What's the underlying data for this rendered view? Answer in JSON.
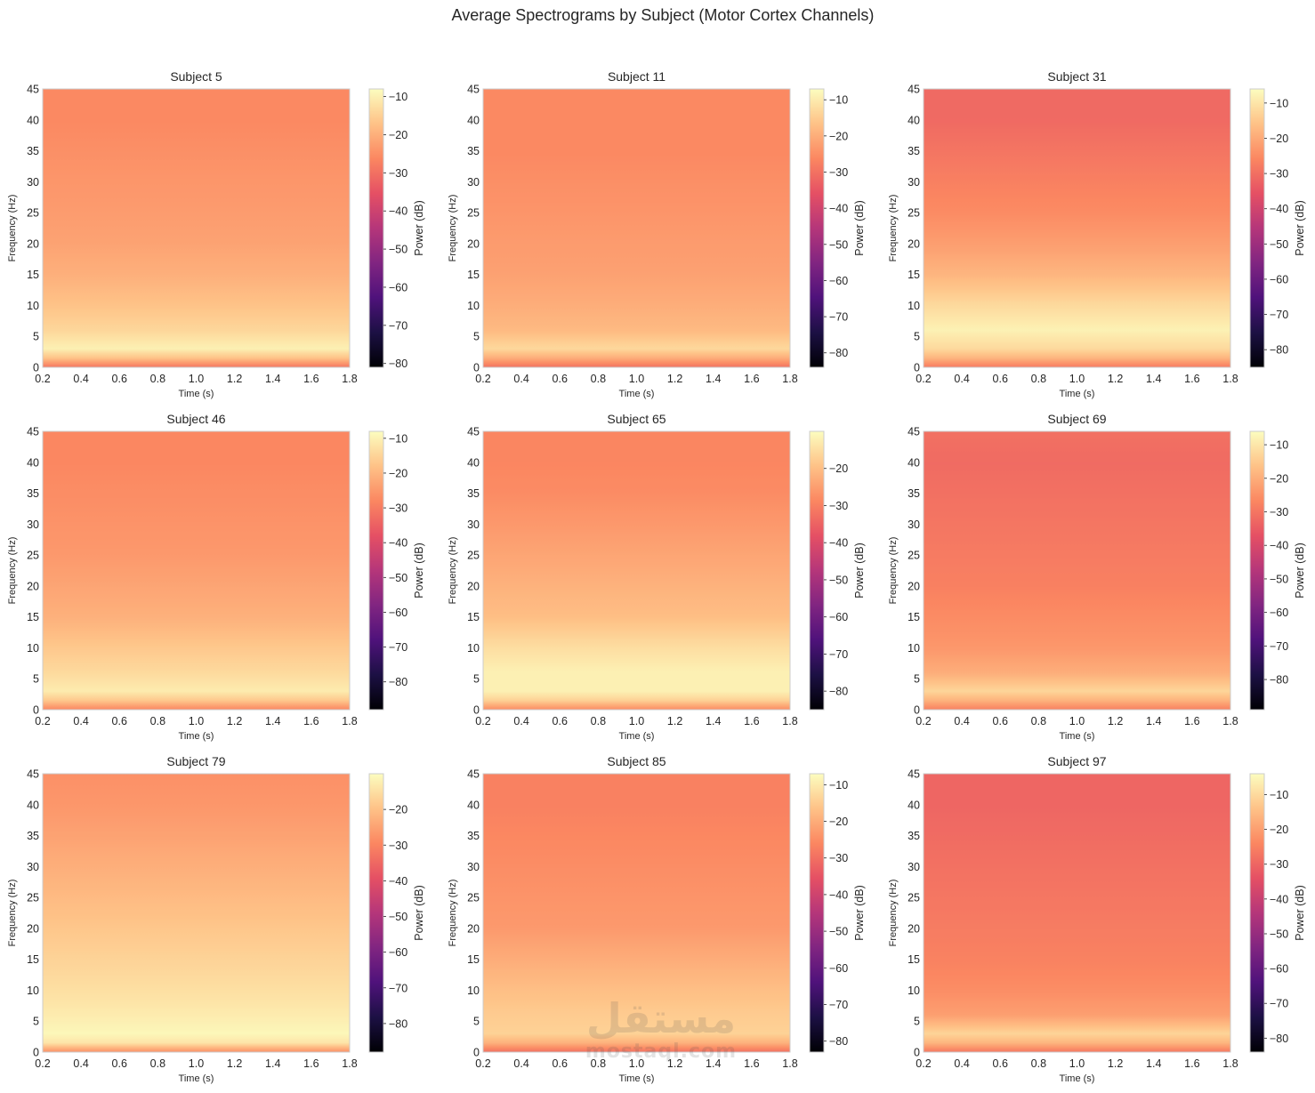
{
  "figure": {
    "title": "Average Spectrograms by Subject (Motor Cortex Channels)"
  },
  "colormap": {
    "name": "magma",
    "stops": [
      "#000004",
      "#1c1044",
      "#4f127b",
      "#812581",
      "#b5367a",
      "#e55064",
      "#fb8761",
      "#fec287",
      "#fcfdbf"
    ]
  },
  "watermark": {
    "arabic": "مستقل",
    "latin": "mostaql.com"
  },
  "chart_data": [
    {
      "type": "heatmap",
      "title": "Subject 5",
      "xlabel": "Time (s)",
      "ylabel": "Frequency (Hz)",
      "colorbar_label": "Power (dB)",
      "xlim": [
        0.2,
        1.8
      ],
      "ylim": [
        0,
        45
      ],
      "xticks": [
        0.2,
        0.4,
        0.6,
        0.8,
        1.0,
        1.2,
        1.4,
        1.6,
        1.8
      ],
      "xtick_labels": [
        "0.2",
        "0.4",
        "0.6",
        "0.8",
        "1.0",
        "1.2",
        "1.4",
        "1.6",
        "1.8"
      ],
      "yticks": [
        0,
        5,
        10,
        15,
        20,
        25,
        30,
        35,
        40,
        45
      ],
      "ytick_labels": [
        "0",
        "5",
        "10",
        "15",
        "20",
        "25",
        "30",
        "35",
        "40",
        "45"
      ],
      "clim": [
        -81,
        -8
      ],
      "colorbar_ticks": [
        -80,
        -70,
        -60,
        -50,
        -40,
        -30,
        -20,
        -10
      ],
      "colorbar_tick_labels": [
        "−80",
        "−70",
        "−60",
        "−50",
        "−40",
        "−30",
        "−20",
        "−10"
      ],
      "freq_profile": {
        "freqs": [
          0,
          1.5,
          3,
          6,
          10,
          15,
          20,
          25,
          30,
          35,
          40,
          45
        ],
        "power": [
          -29,
          -17,
          -10,
          -14,
          -17,
          -20,
          -22,
          -23,
          -24,
          -25,
          -26,
          -26
        ]
      }
    },
    {
      "type": "heatmap",
      "title": "Subject 11",
      "xlabel": "Time (s)",
      "ylabel": "Frequency (Hz)",
      "colorbar_label": "Power (dB)",
      "xlim": [
        0.2,
        1.8
      ],
      "ylim": [
        0,
        45
      ],
      "xticks": [
        0.2,
        0.4,
        0.6,
        0.8,
        1.0,
        1.2,
        1.4,
        1.6,
        1.8
      ],
      "xtick_labels": [
        "0.2",
        "0.4",
        "0.6",
        "0.8",
        "1.0",
        "1.2",
        "1.4",
        "1.6",
        "1.8"
      ],
      "yticks": [
        0,
        5,
        10,
        15,
        20,
        25,
        30,
        35,
        40,
        45
      ],
      "ytick_labels": [
        "0",
        "5",
        "10",
        "15",
        "20",
        "25",
        "30",
        "35",
        "40",
        "45"
      ],
      "clim": [
        -84,
        -7
      ],
      "colorbar_ticks": [
        -80,
        -70,
        -60,
        -50,
        -40,
        -30,
        -20,
        -10
      ],
      "colorbar_tick_labels": [
        "−80",
        "−70",
        "−60",
        "−50",
        "−40",
        "−30",
        "−20",
        "−10"
      ],
      "freq_profile": {
        "freqs": [
          0,
          1.5,
          3,
          6,
          10,
          15,
          20,
          25,
          30,
          35,
          40,
          45
        ],
        "power": [
          -30,
          -20,
          -13,
          -18,
          -20,
          -22,
          -23,
          -24,
          -25,
          -26,
          -26,
          -26
        ]
      }
    },
    {
      "type": "heatmap",
      "title": "Subject 31",
      "xlabel": "Time (s)",
      "ylabel": "Frequency (Hz)",
      "colorbar_label": "Power (dB)",
      "xlim": [
        0.2,
        1.8
      ],
      "ylim": [
        0,
        45
      ],
      "xticks": [
        0.2,
        0.4,
        0.6,
        0.8,
        1.0,
        1.2,
        1.4,
        1.6,
        1.8
      ],
      "xtick_labels": [
        "0.2",
        "0.4",
        "0.6",
        "0.8",
        "1.0",
        "1.2",
        "1.4",
        "1.6",
        "1.8"
      ],
      "yticks": [
        0,
        5,
        10,
        15,
        20,
        25,
        30,
        35,
        40,
        45
      ],
      "ytick_labels": [
        "0",
        "5",
        "10",
        "15",
        "20",
        "25",
        "30",
        "35",
        "40",
        "45"
      ],
      "clim": [
        -85,
        -6
      ],
      "colorbar_ticks": [
        -80,
        -70,
        -60,
        -50,
        -40,
        -30,
        -20,
        -10
      ],
      "colorbar_tick_labels": [
        "−80",
        "−70",
        "−60",
        "−50",
        "−40",
        "−30",
        "−20",
        "−10"
      ],
      "freq_profile": {
        "freqs": [
          0,
          1.5,
          3,
          6,
          10,
          15,
          20,
          25,
          30,
          35,
          40,
          45
        ],
        "power": [
          -28,
          -18,
          -12,
          -8,
          -12,
          -18,
          -22,
          -25,
          -27,
          -29,
          -31,
          -31
        ]
      }
    },
    {
      "type": "heatmap",
      "title": "Subject 46",
      "xlabel": "Time (s)",
      "ylabel": "Frequency (Hz)",
      "colorbar_label": "Power (dB)",
      "xlim": [
        0.2,
        1.8
      ],
      "ylim": [
        0,
        45
      ],
      "xticks": [
        0.2,
        0.4,
        0.6,
        0.8,
        1.0,
        1.2,
        1.4,
        1.6,
        1.8
      ],
      "xtick_labels": [
        "0.2",
        "0.4",
        "0.6",
        "0.8",
        "1.0",
        "1.2",
        "1.4",
        "1.6",
        "1.8"
      ],
      "yticks": [
        0,
        5,
        10,
        15,
        20,
        25,
        30,
        35,
        40,
        45
      ],
      "ytick_labels": [
        "0",
        "5",
        "10",
        "15",
        "20",
        "25",
        "30",
        "35",
        "40",
        "45"
      ],
      "clim": [
        -88,
        -8
      ],
      "colorbar_ticks": [
        -80,
        -70,
        -60,
        -50,
        -40,
        -30,
        -20,
        -10
      ],
      "colorbar_tick_labels": [
        "−80",
        "−70",
        "−60",
        "−50",
        "−40",
        "−30",
        "−20",
        "−10"
      ],
      "freq_profile": {
        "freqs": [
          0,
          1.5,
          3,
          6,
          10,
          15,
          20,
          25,
          30,
          35,
          40,
          45
        ],
        "power": [
          -28,
          -17,
          -11,
          -14,
          -17,
          -21,
          -23,
          -25,
          -26,
          -27,
          -28,
          -28
        ]
      }
    },
    {
      "type": "heatmap",
      "title": "Subject 65",
      "xlabel": "Time (s)",
      "ylabel": "Frequency (Hz)",
      "colorbar_label": "Power (dB)",
      "xlim": [
        0.2,
        1.8
      ],
      "ylim": [
        0,
        45
      ],
      "xticks": [
        0.2,
        0.4,
        0.6,
        0.8,
        1.0,
        1.2,
        1.4,
        1.6,
        1.8
      ],
      "xtick_labels": [
        "0.2",
        "0.4",
        "0.6",
        "0.8",
        "1.0",
        "1.2",
        "1.4",
        "1.6",
        "1.8"
      ],
      "yticks": [
        0,
        5,
        10,
        15,
        20,
        25,
        30,
        35,
        40,
        45
      ],
      "ytick_labels": [
        "0",
        "5",
        "10",
        "15",
        "20",
        "25",
        "30",
        "35",
        "40",
        "45"
      ],
      "clim": [
        -85,
        -10
      ],
      "colorbar_ticks": [
        -80,
        -70,
        -60,
        -50,
        -40,
        -30,
        -20
      ],
      "colorbar_tick_labels": [
        "−80",
        "−70",
        "−60",
        "−50",
        "−40",
        "−30",
        "−20"
      ],
      "freq_profile": {
        "freqs": [
          0,
          1.5,
          3,
          6,
          10,
          15,
          20,
          25,
          30,
          35,
          40,
          45
        ],
        "power": [
          -28,
          -17,
          -12,
          -12,
          -15,
          -20,
          -22,
          -24,
          -26,
          -28,
          -29,
          -29
        ]
      }
    },
    {
      "type": "heatmap",
      "title": "Subject 69",
      "xlabel": "Time (s)",
      "ylabel": "Frequency (Hz)",
      "colorbar_label": "Power (dB)",
      "xlim": [
        0.2,
        1.8
      ],
      "ylim": [
        0,
        45
      ],
      "xticks": [
        0.2,
        0.4,
        0.6,
        0.8,
        1.0,
        1.2,
        1.4,
        1.6,
        1.8
      ],
      "xtick_labels": [
        "0.2",
        "0.4",
        "0.6",
        "0.8",
        "1.0",
        "1.2",
        "1.4",
        "1.6",
        "1.8"
      ],
      "yticks": [
        0,
        5,
        10,
        15,
        20,
        25,
        30,
        35,
        40,
        45
      ],
      "ytick_labels": [
        "0",
        "5",
        "10",
        "15",
        "20",
        "25",
        "30",
        "35",
        "40",
        "45"
      ],
      "clim": [
        -89,
        -6
      ],
      "colorbar_ticks": [
        -80,
        -70,
        -60,
        -50,
        -40,
        -30,
        -20,
        -10
      ],
      "colorbar_tick_labels": [
        "−80",
        "−70",
        "−60",
        "−50",
        "−40",
        "−30",
        "−20",
        "−10"
      ],
      "freq_profile": {
        "freqs": [
          0,
          1.5,
          3,
          6,
          10,
          15,
          20,
          25,
          30,
          35,
          40,
          45
        ],
        "power": [
          -28,
          -19,
          -13,
          -20,
          -24,
          -26,
          -28,
          -29,
          -30,
          -31,
          -32,
          -31
        ]
      }
    },
    {
      "type": "heatmap",
      "title": "Subject 79",
      "xlabel": "Time (s)",
      "ylabel": "Frequency (Hz)",
      "colorbar_label": "Power (dB)",
      "xlim": [
        0.2,
        1.8
      ],
      "ylim": [
        0,
        45
      ],
      "xticks": [
        0.2,
        0.4,
        0.6,
        0.8,
        1.0,
        1.2,
        1.4,
        1.6,
        1.8
      ],
      "xtick_labels": [
        "0.2",
        "0.4",
        "0.6",
        "0.8",
        "1.0",
        "1.2",
        "1.4",
        "1.6",
        "1.8"
      ],
      "yticks": [
        0,
        5,
        10,
        15,
        20,
        25,
        30,
        35,
        40,
        45
      ],
      "ytick_labels": [
        "0",
        "5",
        "10",
        "15",
        "20",
        "25",
        "30",
        "35",
        "40",
        "45"
      ],
      "clim": [
        -88,
        -10
      ],
      "colorbar_ticks": [
        -80,
        -70,
        -60,
        -50,
        -40,
        -30,
        -20
      ],
      "colorbar_tick_labels": [
        "−80",
        "−70",
        "−60",
        "−50",
        "−40",
        "−30",
        "−20"
      ],
      "freq_profile": {
        "freqs": [
          0,
          1.5,
          3,
          6,
          10,
          15,
          20,
          25,
          30,
          35,
          40,
          45
        ],
        "power": [
          -28,
          -14,
          -11,
          -13,
          -15,
          -17,
          -19,
          -21,
          -23,
          -25,
          -27,
          -28
        ]
      }
    },
    {
      "type": "heatmap",
      "title": "Subject 85",
      "xlabel": "Time (s)",
      "ylabel": "Frequency (Hz)",
      "colorbar_label": "Power (dB)",
      "xlim": [
        0.2,
        1.8
      ],
      "ylim": [
        0,
        45
      ],
      "xticks": [
        0.2,
        0.4,
        0.6,
        0.8,
        1.0,
        1.2,
        1.4,
        1.6,
        1.8
      ],
      "xtick_labels": [
        "0.2",
        "0.4",
        "0.6",
        "0.8",
        "1.0",
        "1.2",
        "1.4",
        "1.6",
        "1.8"
      ],
      "yticks": [
        0,
        5,
        10,
        15,
        20,
        25,
        30,
        35,
        40,
        45
      ],
      "ytick_labels": [
        "0",
        "5",
        "10",
        "15",
        "20",
        "25",
        "30",
        "35",
        "40",
        "45"
      ],
      "clim": [
        -83,
        -7
      ],
      "colorbar_ticks": [
        -80,
        -70,
        -60,
        -50,
        -40,
        -30,
        -20,
        -10
      ],
      "colorbar_tick_labels": [
        "−80",
        "−70",
        "−60",
        "−50",
        "−40",
        "−30",
        "−20",
        "−10"
      ],
      "freq_profile": {
        "freqs": [
          0,
          1.5,
          3,
          6,
          10,
          15,
          20,
          25,
          30,
          35,
          40,
          45
        ],
        "power": [
          -30,
          -19,
          -14,
          -15,
          -17,
          -20,
          -23,
          -24,
          -25,
          -26,
          -27,
          -27
        ]
      }
    },
    {
      "type": "heatmap",
      "title": "Subject 97",
      "xlabel": "Time (s)",
      "ylabel": "Frequency (Hz)",
      "colorbar_label": "Power (dB)",
      "xlim": [
        0.2,
        1.8
      ],
      "ylim": [
        0,
        45
      ],
      "xticks": [
        0.2,
        0.4,
        0.6,
        0.8,
        1.0,
        1.2,
        1.4,
        1.6,
        1.8
      ],
      "xtick_labels": [
        "0.2",
        "0.4",
        "0.6",
        "0.8",
        "1.0",
        "1.2",
        "1.4",
        "1.6",
        "1.8"
      ],
      "yticks": [
        0,
        5,
        10,
        15,
        20,
        25,
        30,
        35,
        40,
        45
      ],
      "ytick_labels": [
        "0",
        "5",
        "10",
        "15",
        "20",
        "25",
        "30",
        "35",
        "40",
        "45"
      ],
      "clim": [
        -84,
        -4
      ],
      "colorbar_ticks": [
        -80,
        -70,
        -60,
        -50,
        -40,
        -30,
        -20,
        -10
      ],
      "colorbar_tick_labels": [
        "−80",
        "−70",
        "−60",
        "−50",
        "−40",
        "−30",
        "−20",
        "−10"
      ],
      "freq_profile": {
        "freqs": [
          0,
          1.5,
          3,
          6,
          10,
          15,
          20,
          25,
          30,
          35,
          40,
          45
        ],
        "power": [
          -27,
          -16,
          -11,
          -20,
          -23,
          -25,
          -26,
          -27,
          -28,
          -29,
          -30,
          -30
        ]
      }
    }
  ]
}
